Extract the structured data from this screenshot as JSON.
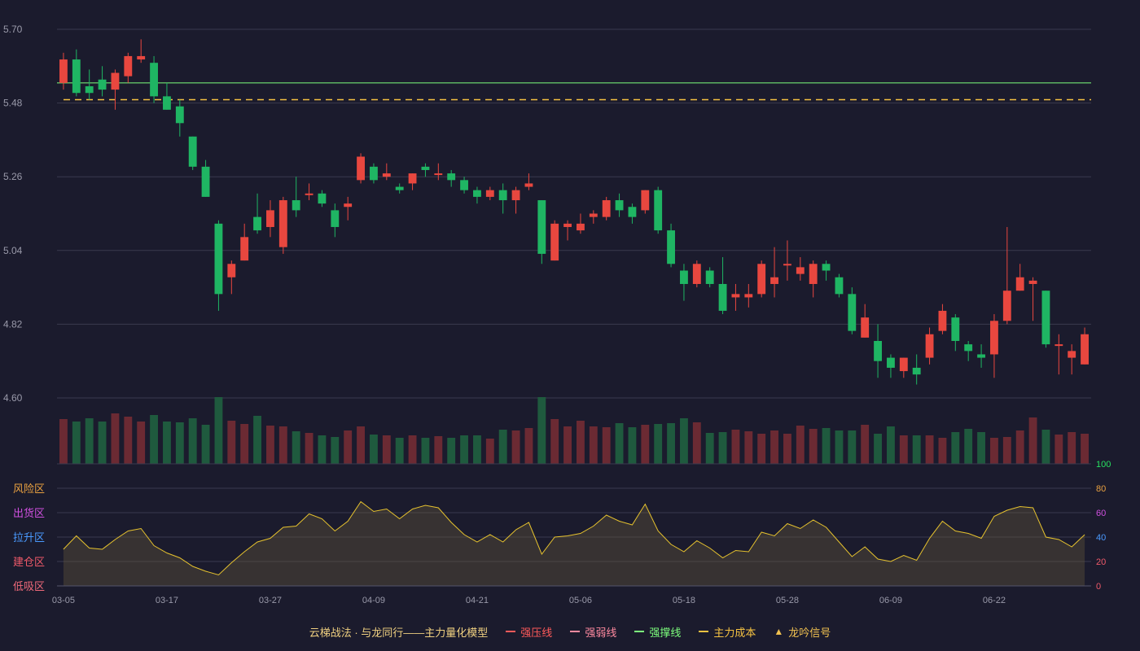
{
  "chart_data": {
    "type": "candlestick",
    "price_ticks": [
      "5.70",
      "5.48",
      "5.26",
      "5.04",
      "4.82",
      "4.60"
    ],
    "price_range": [
      4.6,
      5.7
    ],
    "x_ticks": [
      "03-05",
      "03-17",
      "03-27",
      "04-09",
      "04-21",
      "05-06",
      "05-18",
      "05-28",
      "06-09",
      "06-22"
    ],
    "x_tick_index": [
      0,
      8,
      16,
      24,
      32,
      40,
      48,
      56,
      64,
      72
    ],
    "reference_lines": {
      "resistance_green": 5.54,
      "main_cost_dashed": 5.49
    },
    "candles": [
      [
        5.54,
        5.61,
        5.52,
        5.63
      ],
      [
        5.61,
        5.51,
        5.5,
        5.64
      ],
      [
        5.53,
        5.51,
        5.49,
        5.58
      ],
      [
        5.55,
        5.52,
        5.5,
        5.59
      ],
      [
        5.52,
        5.57,
        5.46,
        5.58
      ],
      [
        5.56,
        5.62,
        5.54,
        5.63
      ],
      [
        5.61,
        5.62,
        5.6,
        5.67
      ],
      [
        5.6,
        5.5,
        5.48,
        5.62
      ],
      [
        5.5,
        5.46,
        5.46,
        5.54
      ],
      [
        5.47,
        5.42,
        5.38,
        5.49
      ],
      [
        5.38,
        5.29,
        5.28,
        5.38
      ],
      [
        5.29,
        5.2,
        5.2,
        5.31
      ],
      [
        5.12,
        4.91,
        4.86,
        5.13
      ],
      [
        4.96,
        5.0,
        4.91,
        5.01
      ],
      [
        5.01,
        5.08,
        5.01,
        5.12
      ],
      [
        5.14,
        5.1,
        5.09,
        5.21
      ],
      [
        5.11,
        5.16,
        5.08,
        5.19
      ],
      [
        5.05,
        5.19,
        5.03,
        5.2
      ],
      [
        5.19,
        5.16,
        5.14,
        5.26
      ],
      [
        5.21,
        5.21,
        5.19,
        5.24
      ],
      [
        5.21,
        5.18,
        5.17,
        5.22
      ],
      [
        5.16,
        5.11,
        5.08,
        5.18
      ],
      [
        5.17,
        5.18,
        5.13,
        5.2
      ],
      [
        5.25,
        5.32,
        5.24,
        5.33
      ],
      [
        5.29,
        5.25,
        5.24,
        5.3
      ],
      [
        5.26,
        5.27,
        5.25,
        5.3
      ],
      [
        5.23,
        5.22,
        5.21,
        5.24
      ],
      [
        5.24,
        5.27,
        5.22,
        5.27
      ],
      [
        5.29,
        5.28,
        5.26,
        5.3
      ],
      [
        5.27,
        5.27,
        5.25,
        5.3
      ],
      [
        5.27,
        5.25,
        5.23,
        5.28
      ],
      [
        5.25,
        5.22,
        5.21,
        5.26
      ],
      [
        5.22,
        5.2,
        5.18,
        5.23
      ],
      [
        5.2,
        5.22,
        5.19,
        5.23
      ],
      [
        5.22,
        5.19,
        5.15,
        5.24
      ],
      [
        5.19,
        5.22,
        5.15,
        5.23
      ],
      [
        5.23,
        5.24,
        5.22,
        5.27
      ],
      [
        5.19,
        5.03,
        5.0,
        5.19
      ],
      [
        5.01,
        5.12,
        5.01,
        5.13
      ],
      [
        5.11,
        5.12,
        5.07,
        5.13
      ],
      [
        5.1,
        5.12,
        5.09,
        5.15
      ],
      [
        5.14,
        5.15,
        5.12,
        5.16
      ],
      [
        5.14,
        5.19,
        5.13,
        5.2
      ],
      [
        5.19,
        5.16,
        5.14,
        5.21
      ],
      [
        5.17,
        5.14,
        5.12,
        5.18
      ],
      [
        5.16,
        5.22,
        5.15,
        5.22
      ],
      [
        5.22,
        5.1,
        5.09,
        5.23
      ],
      [
        5.1,
        5.0,
        4.99,
        5.12
      ],
      [
        4.98,
        4.94,
        4.89,
        5.0
      ],
      [
        4.94,
        5.0,
        4.93,
        5.01
      ],
      [
        4.98,
        4.94,
        4.93,
        4.99
      ],
      [
        4.94,
        4.86,
        4.85,
        5.02
      ],
      [
        4.9,
        4.91,
        4.86,
        4.94
      ],
      [
        4.9,
        4.91,
        4.87,
        4.94
      ],
      [
        4.91,
        5.0,
        4.9,
        5.01
      ],
      [
        4.94,
        4.96,
        4.9,
        5.05
      ],
      [
        5.0,
        5.0,
        4.95,
        5.07
      ],
      [
        4.97,
        4.99,
        4.95,
        5.02
      ],
      [
        4.94,
        5.0,
        4.9,
        5.01
      ],
      [
        5.0,
        4.98,
        4.95,
        5.01
      ],
      [
        4.96,
        4.91,
        4.9,
        4.97
      ],
      [
        4.91,
        4.8,
        4.79,
        4.93
      ],
      [
        4.78,
        4.84,
        4.78,
        4.88
      ],
      [
        4.77,
        4.71,
        4.66,
        4.82
      ],
      [
        4.72,
        4.69,
        4.66,
        4.73
      ],
      [
        4.68,
        4.72,
        4.66,
        4.72
      ],
      [
        4.69,
        4.67,
        4.64,
        4.73
      ],
      [
        4.72,
        4.79,
        4.7,
        4.81
      ],
      [
        4.8,
        4.86,
        4.79,
        4.88
      ],
      [
        4.84,
        4.77,
        4.74,
        4.85
      ],
      [
        4.76,
        4.74,
        4.71,
        4.77
      ],
      [
        4.73,
        4.72,
        4.69,
        4.76
      ],
      [
        4.73,
        4.83,
        4.66,
        4.85
      ],
      [
        4.83,
        4.92,
        4.82,
        5.11
      ],
      [
        4.92,
        4.96,
        4.92,
        5.0
      ],
      [
        4.94,
        4.95,
        4.83,
        4.96
      ],
      [
        4.92,
        4.76,
        4.75,
        4.92
      ],
      [
        4.76,
        4.76,
        4.67,
        4.79
      ],
      [
        4.72,
        4.74,
        4.67,
        4.76
      ],
      [
        4.7,
        4.79,
        4.7,
        4.81
      ]
    ],
    "volume": [
      55,
      52,
      56,
      52,
      62,
      58,
      52,
      60,
      52,
      51,
      56,
      48,
      82,
      53,
      49,
      59,
      47,
      46,
      40,
      38,
      35,
      33,
      41,
      46,
      36,
      35,
      32,
      35,
      32,
      34,
      32,
      35,
      35,
      31,
      42,
      41,
      44,
      82,
      55,
      46,
      53,
      46,
      45,
      50,
      45,
      48,
      49,
      50,
      56,
      51,
      38,
      39,
      42,
      40,
      37,
      41,
      37,
      47,
      43,
      44,
      41,
      41,
      48,
      37,
      46,
      35,
      35,
      35,
      32,
      39,
      43,
      39,
      32,
      33,
      41,
      57,
      42,
      36,
      39,
      37
    ]
  },
  "indicator": {
    "zones": [
      "风险区",
      "出货区",
      "拉升区",
      "建仓区",
      "低吸区"
    ],
    "zone_colors": [
      "#e8a040",
      "#d050e0",
      "#4a9aff",
      "#f05a6a",
      "#f06a7a"
    ],
    "axis_ticks": [
      "100",
      "80",
      "60",
      "40",
      "20",
      "0"
    ],
    "axis_tick_colors": [
      "#27e060",
      "#e8a040",
      "#d050e0",
      "#4a9aff",
      "#f05a6a",
      "#f05a6a"
    ],
    "values": [
      30,
      41,
      31,
      30,
      38,
      45,
      47,
      33,
      27,
      23,
      16,
      12,
      9,
      19,
      28,
      36,
      39,
      48,
      49,
      59,
      55,
      45,
      53,
      69,
      61,
      63,
      55,
      63,
      66,
      64,
      52,
      42,
      36,
      42,
      36,
      46,
      52,
      26,
      40,
      41,
      43,
      49,
      58,
      53,
      50,
      67,
      45,
      34,
      28,
      37,
      31,
      23,
      29,
      28,
      44,
      41,
      51,
      47,
      54,
      48,
      36,
      24,
      32,
      22,
      20,
      25,
      21,
      39,
      53,
      45,
      43,
      39,
      57,
      62,
      65,
      64,
      40,
      38,
      32,
      42
    ]
  },
  "legend": [
    {
      "label": "云梯战法 · 与龙同行——主力量化模型",
      "color": "#f0d080",
      "marker": "none"
    },
    {
      "label": "强压线",
      "color": "#ff5a5a",
      "marker": "solid"
    },
    {
      "label": "强弱线",
      "color": "#ff8aa0",
      "marker": "dashed"
    },
    {
      "label": "强撑线",
      "color": "#7dff7d",
      "marker": "solid"
    },
    {
      "label": "主力成本",
      "color": "#f5c242",
      "marker": "dashed"
    },
    {
      "label": "龙吟信号",
      "color": "#f0c050",
      "marker": "triangle"
    }
  ],
  "colors": {
    "up": "#e8473f",
    "down": "#1fb563",
    "vol_up": "#6b2a33",
    "vol_down": "#1f5a3e",
    "indicator_line": "#e6c22e"
  }
}
